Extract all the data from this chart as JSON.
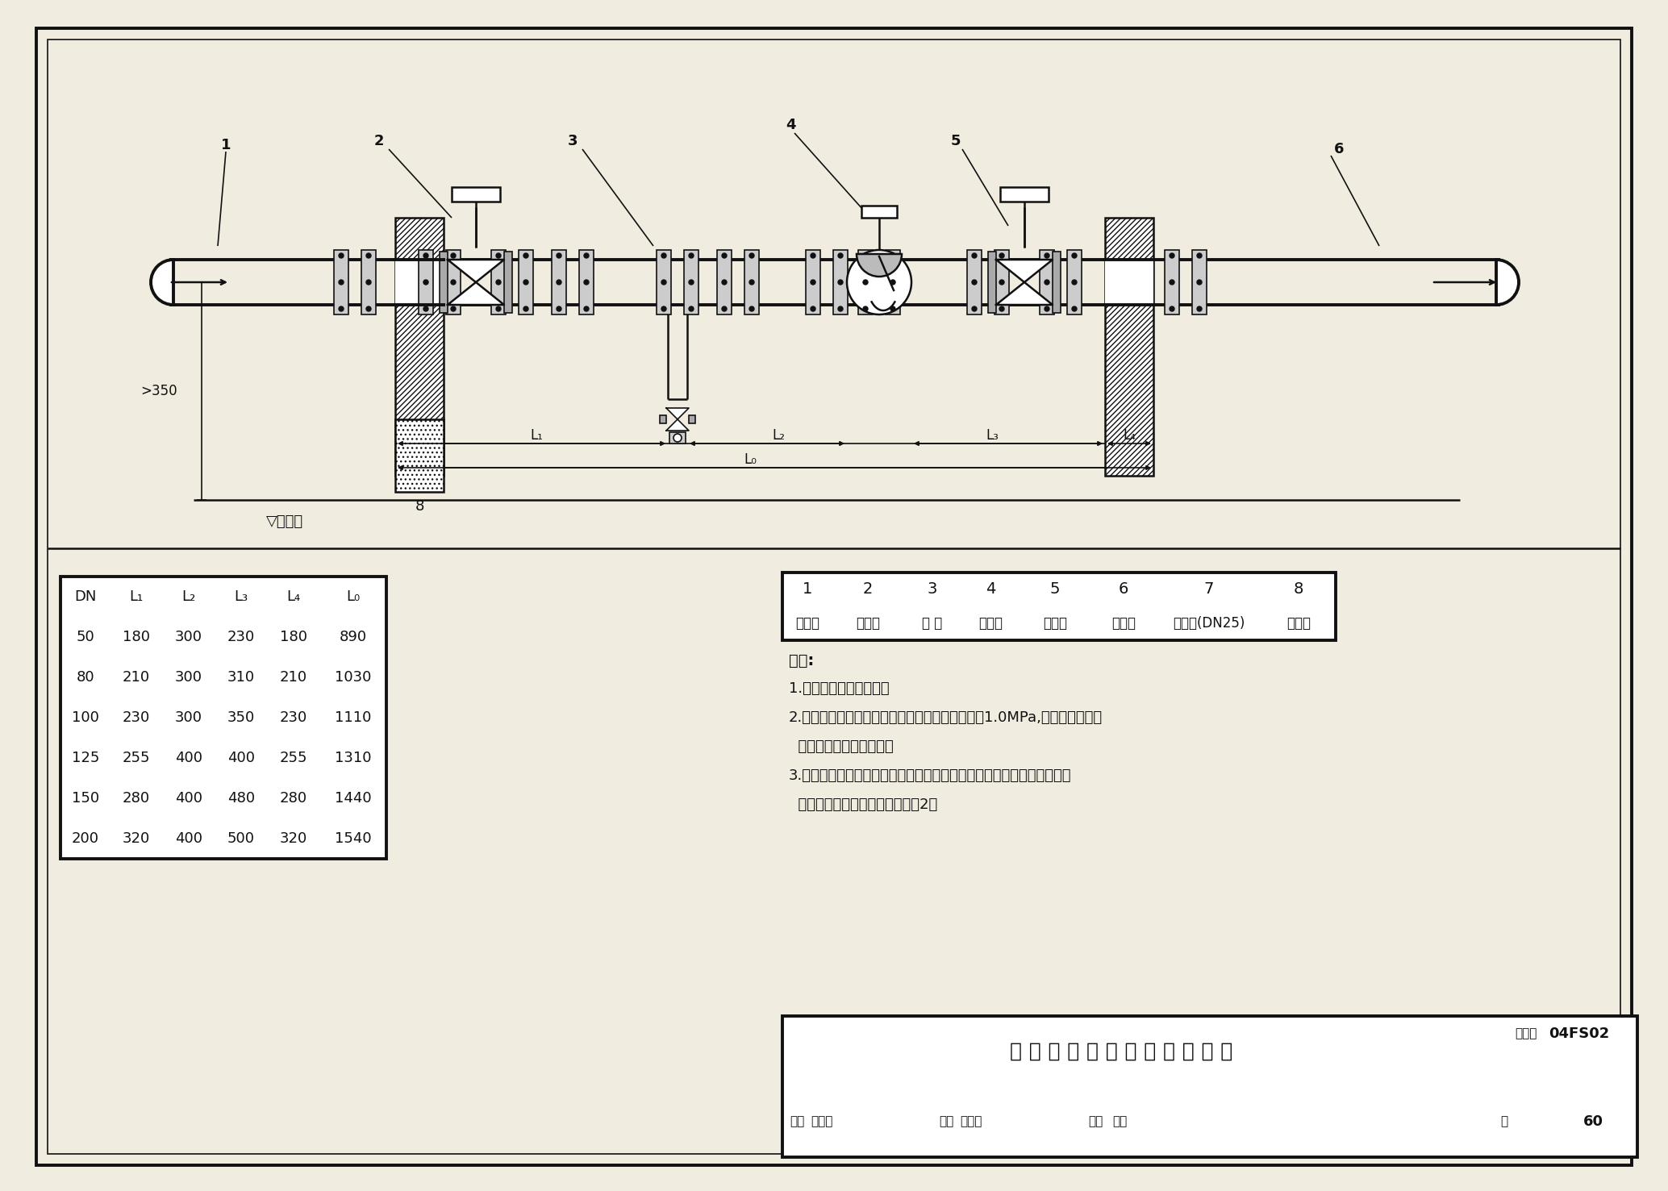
{
  "title": "生活给水引入管防毒隔断图",
  "figure_number": "04FS02",
  "page": "60",
  "bg_color": "#f0ece0",
  "white": "#ffffff",
  "black": "#111111",
  "component_names": [
    "进水管",
    "闸板阀",
    "三 通",
    "止回阀",
    "闸板阀",
    "出水管",
    "放水阀(DN25)",
    "砖支墩"
  ],
  "table_data": [
    [
      50,
      180,
      300,
      230,
      180,
      890
    ],
    [
      80,
      210,
      300,
      310,
      210,
      1030
    ],
    [
      100,
      230,
      300,
      350,
      230,
      1110
    ],
    [
      125,
      255,
      400,
      400,
      255,
      1310
    ],
    [
      150,
      280,
      400,
      480,
      280,
      1440
    ],
    [
      200,
      320,
      400,
      500,
      320,
      1540
    ]
  ],
  "note_lines": [
    "说明:",
    "1.管道采用热镀锌钢管。",
    "2.管道、阀门、止回阀、放水阀工作压力不应小于1.0MPa,其规格、尺寸及",
    "  支墩均由具体设计确定。",
    "3.本图为引入管安装防爆波阀门之后的防毒隔断设计，当防爆波阀门采用",
    "  闸板阀或截止阀时可不设闸板阀2。"
  ],
  "footer_row1": [
    "审核",
    "许为民",
    "校对",
    "杨春志",
    "设计",
    "任放"
  ],
  "footer_row2_labels": [
    "审核",
    "",
    "校对",
    "",
    "设计",
    "",
    "页"
  ]
}
